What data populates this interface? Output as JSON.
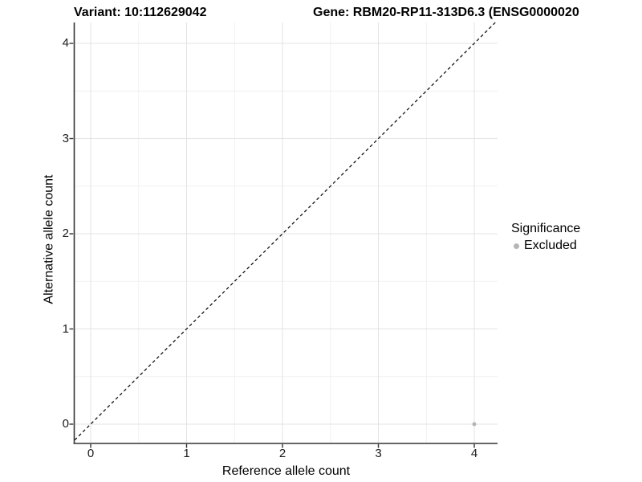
{
  "chart_data": {
    "type": "scatter",
    "title_left": "Variant: 10:112629042",
    "title_right": "Gene: RBM20-RP11-313D6.3 (ENSG0000020",
    "xlabel": "Reference allele count",
    "ylabel": "Alternative allele count",
    "xlim": [
      -0.2,
      4.2
    ],
    "ylim": [
      -0.2,
      4.2
    ],
    "x_ticks": [
      0,
      1,
      2,
      3,
      4
    ],
    "y_ticks": [
      0,
      1,
      2,
      3,
      4
    ],
    "grid": {
      "major": true,
      "minor": true
    },
    "series": [
      {
        "name": "Excluded",
        "color": "#b5b5b5",
        "points": [
          {
            "x": 4,
            "y": 0
          }
        ]
      }
    ],
    "reference_line": {
      "kind": "identity y=x",
      "style": "dashed",
      "color": "#000000"
    },
    "legend": {
      "title": "Significance",
      "position": "right"
    }
  },
  "colors": {
    "axis_line": "#333333",
    "tick": "#333333",
    "grid_major": "#e3e3e3",
    "grid_minor": "#f1f1f1",
    "panel_background": "#ffffff"
  }
}
